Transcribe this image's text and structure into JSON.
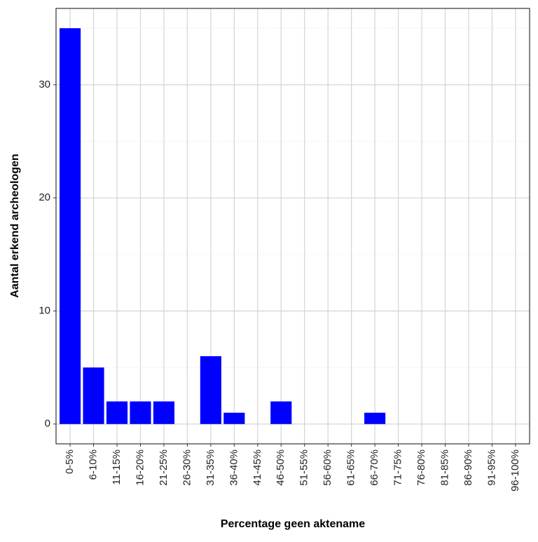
{
  "chart_data": {
    "type": "bar",
    "x_label": "Percentage geen aktename",
    "y_label": "Aantal erkend archeologen",
    "categories": [
      "0-5%",
      "6-10%",
      "11-15%",
      "16-20%",
      "21-25%",
      "26-30%",
      "31-35%",
      "36-40%",
      "41-45%",
      "46-50%",
      "51-55%",
      "56-60%",
      "61-65%",
      "66-70%",
      "71-75%",
      "76-80%",
      "81-85%",
      "86-90%",
      "91-95%",
      "96-100%"
    ],
    "values": [
      35,
      5,
      2,
      2,
      2,
      0,
      6,
      1,
      0,
      2,
      0,
      0,
      0,
      1,
      0,
      0,
      0,
      0,
      0,
      0
    ],
    "color": "#0000ff",
    "ylim": [
      -1.75,
      36.75
    ],
    "yticks": [
      0,
      10,
      20,
      30
    ],
    "grid": true,
    "minor_grid": true
  }
}
